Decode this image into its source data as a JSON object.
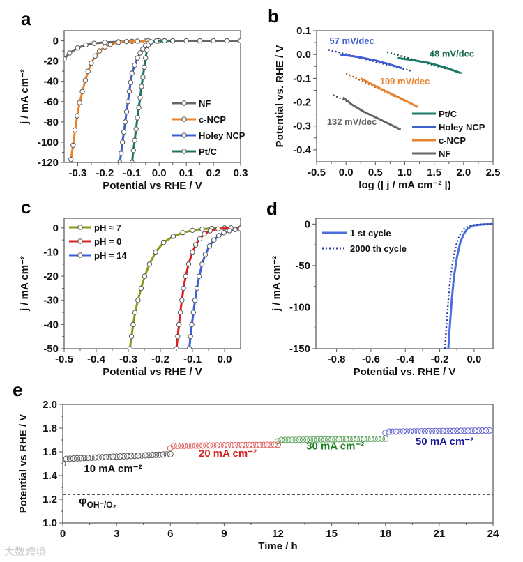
{
  "watermark": "大数跨境",
  "chart_data": [
    {
      "id": "a",
      "panel_label": "a",
      "type": "line",
      "xlim": [
        -0.35,
        0.3
      ],
      "ylim": [
        -120,
        10
      ],
      "xticks": [
        "-0.3",
        "-0.2",
        "-0.1",
        "0.0",
        "0.1",
        "0.2",
        "0.3"
      ],
      "yticks": [
        "0",
        "-20",
        "-40",
        "-60",
        "-80",
        "-100",
        "-120"
      ],
      "xlabel": "Potential vs RHE / V",
      "ylabel": "j / mA cm⁻²",
      "series": [
        {
          "name": "NF",
          "color": "#666666",
          "style": "line-markers",
          "points": [
            [
              -0.35,
              -18
            ],
            [
              -0.33,
              -12
            ],
            [
              -0.3,
              -7
            ],
            [
              -0.27,
              -4
            ],
            [
              -0.24,
              -2.5
            ],
            [
              -0.2,
              -1.5
            ],
            [
              -0.15,
              -1
            ],
            [
              -0.1,
              -0.5
            ],
            [
              -0.05,
              -0.3
            ],
            [
              0,
              -0.2
            ],
            [
              0.05,
              0
            ],
            [
              0.1,
              0
            ],
            [
              0.15,
              0
            ],
            [
              0.2,
              0
            ],
            [
              0.25,
              0
            ],
            [
              0.3,
              0
            ]
          ]
        },
        {
          "name": "c-NCP",
          "color": "#e8832e",
          "style": "line-markers",
          "points": [
            [
              -0.325,
              -117
            ],
            [
              -0.317,
              -103
            ],
            [
              -0.31,
              -88
            ],
            [
              -0.302,
              -74
            ],
            [
              -0.293,
              -61
            ],
            [
              -0.283,
              -50
            ],
            [
              -0.272,
              -39
            ],
            [
              -0.262,
              -30
            ],
            [
              -0.25,
              -22
            ],
            [
              -0.236,
              -15
            ],
            [
              -0.22,
              -10
            ],
            [
              -0.2,
              -6
            ],
            [
              -0.18,
              -3.5
            ],
            [
              -0.15,
              -1.5
            ],
            [
              -0.12,
              -0.8
            ],
            [
              -0.08,
              -0.3
            ],
            [
              -0.04,
              0
            ],
            [
              0,
              0
            ]
          ]
        },
        {
          "name": "Holey NCP",
          "color": "#4060d0",
          "style": "line-markers",
          "points": [
            [
              -0.145,
              -120
            ],
            [
              -0.14,
              -111
            ],
            [
              -0.135,
              -100
            ],
            [
              -0.13,
              -90
            ],
            [
              -0.125,
              -80
            ],
            [
              -0.12,
              -70
            ],
            [
              -0.115,
              -60
            ],
            [
              -0.11,
              -50
            ],
            [
              -0.105,
              -41
            ],
            [
              -0.1,
              -32
            ],
            [
              -0.09,
              -24
            ],
            [
              -0.08,
              -17
            ],
            [
              -0.07,
              -12
            ],
            [
              -0.06,
              -8
            ],
            [
              -0.05,
              -4.5
            ],
            [
              -0.04,
              -2.5
            ],
            [
              -0.03,
              -1.2
            ],
            [
              -0.01,
              -0.3
            ],
            [
              0.02,
              0
            ],
            [
              0.05,
              0
            ]
          ]
        },
        {
          "name": "Pt/C",
          "color": "#1a7a66",
          "style": "line-markers",
          "points": [
            [
              -0.1,
              -120
            ],
            [
              -0.095,
              -108
            ],
            [
              -0.09,
              -98
            ],
            [
              -0.085,
              -87
            ],
            [
              -0.08,
              -76
            ],
            [
              -0.075,
              -66
            ],
            [
              -0.07,
              -56
            ],
            [
              -0.065,
              -45
            ],
            [
              -0.06,
              -36
            ],
            [
              -0.055,
              -26
            ],
            [
              -0.05,
              -17
            ],
            [
              -0.045,
              -9
            ],
            [
              -0.04,
              -4
            ],
            [
              -0.03,
              -1
            ],
            [
              -0.01,
              0
            ],
            [
              0.02,
              0
            ],
            [
              0.05,
              0
            ]
          ]
        }
      ],
      "legend": {
        "placement": "bottom-right",
        "entries": [
          "NF",
          "c-NCP",
          "Holey NCP",
          "Pt/C"
        ]
      },
      "annotations": []
    },
    {
      "id": "b",
      "panel_label": "b",
      "type": "line",
      "xlim": [
        -0.5,
        2.5
      ],
      "ylim": [
        -0.45,
        0.1
      ],
      "xticks": [
        "-0.5",
        "0.0",
        "0.5",
        "1.0",
        "1.5",
        "2.0",
        "2.5"
      ],
      "yticks": [
        "0.1",
        "0.0",
        "-0.1",
        "-0.2",
        "-0.3",
        "-0.4"
      ],
      "xlabel": "log (| j / mA cm⁻² |)",
      "ylabel": "Potential vs. RHE / V",
      "series": [
        {
          "name": "Pt/C fit",
          "color": "#1a4a40",
          "style": "dotted",
          "points": [
            [
              0.7,
              0.01
            ],
            [
              2.0,
              -0.08
            ]
          ]
        },
        {
          "name": "Pt/C",
          "color": "#1a7a66",
          "style": "line",
          "points": [
            [
              0.88,
              -0.015
            ],
            [
              1.1,
              -0.022
            ],
            [
              1.4,
              -0.035
            ],
            [
              1.7,
              -0.055
            ],
            [
              1.95,
              -0.078
            ]
          ]
        },
        {
          "name": "Holey NCP fit",
          "color": "#223a90",
          "style": "dotted",
          "points": [
            [
              -0.3,
              0.02
            ],
            [
              1.1,
              -0.068
            ]
          ]
        },
        {
          "name": "Holey NCP",
          "color": "#4060d0",
          "style": "line",
          "points": [
            [
              -0.1,
              0.0
            ],
            [
              0.2,
              -0.01
            ],
            [
              0.5,
              -0.025
            ],
            [
              0.75,
              -0.042
            ],
            [
              0.95,
              -0.057
            ]
          ]
        },
        {
          "name": "c-NCP fit",
          "color": "#b05a10",
          "style": "dotted",
          "points": [
            [
              0.0,
              -0.08
            ],
            [
              1.22,
              -0.22
            ]
          ]
        },
        {
          "name": "c-NCP",
          "color": "#e8832e",
          "style": "line",
          "points": [
            [
              0.25,
              -0.1
            ],
            [
              0.6,
              -0.145
            ],
            [
              0.9,
              -0.18
            ],
            [
              1.22,
              -0.22
            ]
          ]
        },
        {
          "name": "NF fit",
          "color": "#444444",
          "style": "dotted",
          "points": [
            [
              -0.22,
              -0.17
            ],
            [
              0.1,
              -0.205
            ]
          ]
        },
        {
          "name": "NF",
          "color": "#666666",
          "style": "line",
          "points": [
            [
              -0.05,
              -0.18
            ],
            [
              0.1,
              -0.21
            ],
            [
              0.3,
              -0.24
            ],
            [
              0.6,
              -0.275
            ],
            [
              0.93,
              -0.315
            ]
          ]
        }
      ],
      "legend": {
        "placement": "bottom-right",
        "entries": [
          "Pt/C",
          "Holey NCP",
          "c-NCP",
          "NF"
        ]
      },
      "annotations": [
        {
          "text": "57 mV/dec",
          "x": 0.1,
          "y": 0.045,
          "color": "#4060d0"
        },
        {
          "text": "48 mV/dec",
          "x": 1.8,
          "y": -0.01,
          "color": "#1a6a56"
        },
        {
          "text": "109 mV/dec",
          "x": 1.0,
          "y": -0.125,
          "color": "#e8832e"
        },
        {
          "text": "132 mV/dec",
          "x": 0.1,
          "y": -0.295,
          "color": "#666666"
        }
      ]
    },
    {
      "id": "c",
      "panel_label": "c",
      "type": "line",
      "xlim": [
        -0.5,
        0.05
      ],
      "ylim": [
        -50,
        4
      ],
      "xticks": [
        "-0.5",
        "-0.4",
        "-0.3",
        "-0.2",
        "-0.1",
        "0.0"
      ],
      "yticks": [
        "0",
        "-10",
        "-20",
        "-30",
        "-40",
        "-50"
      ],
      "xlabel": "Potential vs RHE / V",
      "ylabel": "j / mA cm⁻²",
      "series": [
        {
          "name": "pH ≈ 7",
          "color": "#8a9a18",
          "style": "line-markers",
          "points": [
            [
              -0.295,
              -50
            ],
            [
              -0.29,
              -45
            ],
            [
              -0.285,
              -40
            ],
            [
              -0.279,
              -35
            ],
            [
              -0.27,
              -30
            ],
            [
              -0.26,
              -25
            ],
            [
              -0.249,
              -20
            ],
            [
              -0.234,
              -15
            ],
            [
              -0.215,
              -10
            ],
            [
              -0.19,
              -6
            ],
            [
              -0.16,
              -3.5
            ],
            [
              -0.13,
              -2
            ],
            [
              -0.1,
              -1
            ],
            [
              -0.07,
              -0.5
            ],
            [
              -0.04,
              -0.2
            ],
            [
              0,
              0
            ]
          ]
        },
        {
          "name": "pH = 0",
          "color": "#e02020",
          "style": "line-markers",
          "points": [
            [
              -0.15,
              -50
            ],
            [
              -0.146,
              -45
            ],
            [
              -0.142,
              -40
            ],
            [
              -0.138,
              -35
            ],
            [
              -0.133,
              -30
            ],
            [
              -0.128,
              -25
            ],
            [
              -0.121,
              -20
            ],
            [
              -0.112,
              -15
            ],
            [
              -0.1,
              -10
            ],
            [
              -0.09,
              -7
            ],
            [
              -0.077,
              -4.5
            ],
            [
              -0.063,
              -2.5
            ],
            [
              -0.045,
              -1.2
            ],
            [
              -0.02,
              -0.4
            ],
            [
              0.02,
              0
            ],
            [
              0.05,
              0
            ]
          ]
        },
        {
          "name": "pH = 14",
          "color": "#3b5ee0",
          "style": "line-markers",
          "points": [
            [
              -0.11,
              -50
            ],
            [
              -0.106,
              -45
            ],
            [
              -0.102,
              -40
            ],
            [
              -0.097,
              -35
            ],
            [
              -0.092,
              -30
            ],
            [
              -0.086,
              -25
            ],
            [
              -0.079,
              -20
            ],
            [
              -0.07,
              -15
            ],
            [
              -0.06,
              -11
            ],
            [
              -0.047,
              -7.5
            ],
            [
              -0.033,
              -5
            ],
            [
              -0.018,
              -3.2
            ],
            [
              -0.002,
              -2
            ],
            [
              0.015,
              -1.2
            ],
            [
              0.033,
              -0.7
            ],
            [
              0.05,
              -0.4
            ]
          ]
        }
      ],
      "legend": {
        "placement": "top-left",
        "entries": [
          "pH ≈ 7",
          "pH = 0",
          "pH = 14"
        ]
      },
      "annotations": []
    },
    {
      "id": "d",
      "panel_label": "d",
      "type": "line",
      "xlim": [
        -0.92,
        0.11
      ],
      "ylim": [
        -150,
        7
      ],
      "xticks": [
        "-0.8",
        "-0.6",
        "-0.4",
        "-0.2",
        "0.0"
      ],
      "yticks": [
        "0",
        "-50",
        "-100",
        "-150"
      ],
      "xlabel": "Potential vs. RHE / V",
      "ylabel": "j / mA cm⁻²",
      "series": [
        {
          "name": "1 st cycle",
          "color": "#4a6ee0",
          "style": "line",
          "points": [
            [
              -0.15,
              -150
            ],
            [
              -0.14,
              -120
            ],
            [
              -0.13,
              -92
            ],
            [
              -0.118,
              -65
            ],
            [
              -0.1,
              -40
            ],
            [
              -0.08,
              -22
            ],
            [
              -0.06,
              -12
            ],
            [
              -0.04,
              -6
            ],
            [
              -0.02,
              -3
            ],
            [
              0,
              -1.5
            ],
            [
              0.05,
              -0.5
            ],
            [
              0.11,
              0
            ]
          ]
        },
        {
          "name": "2000 th cycle",
          "color": "#2a3ea0",
          "style": "dotted",
          "points": [
            [
              -0.17,
              -150
            ],
            [
              -0.16,
              -120
            ],
            [
              -0.15,
              -92
            ],
            [
              -0.138,
              -65
            ],
            [
              -0.12,
              -40
            ],
            [
              -0.1,
              -22
            ],
            [
              -0.08,
              -12
            ],
            [
              -0.06,
              -6
            ],
            [
              -0.03,
              -2
            ],
            [
              0,
              -1
            ],
            [
              0.05,
              -0.3
            ],
            [
              0.11,
              0
            ]
          ]
        }
      ],
      "legend": {
        "placement": "top-left",
        "entries": [
          "1 st cycle",
          "2000 th cycle"
        ]
      },
      "annotations": []
    },
    {
      "id": "e",
      "panel_label": "e",
      "type": "scatter",
      "xlim": [
        0,
        24
      ],
      "ylim": [
        1.0,
        2.0
      ],
      "xticks": [
        "0",
        "3",
        "6",
        "9",
        "12",
        "15",
        "18",
        "21",
        "24"
      ],
      "yticks": [
        "1.0",
        "1.2",
        "1.4",
        "1.6",
        "1.8",
        "2.0"
      ],
      "xlabel": "Time / h",
      "ylabel": "Potential vs RHE / V",
      "segments": [
        {
          "label": "10 mA cm⁻²",
          "color": "#555555",
          "label_color": "#111111",
          "t_start": 0,
          "t_end": 6,
          "v_initial": 1.5,
          "v_start": 1.54,
          "v_end": 1.58,
          "label_x": 2.8,
          "label_y": 1.43
        },
        {
          "label": "20 mA cm⁻²",
          "color": "#e06060",
          "label_color": "#d42020",
          "t_start": 6,
          "t_end": 12,
          "v_initial": 1.63,
          "v_start": 1.65,
          "v_end": 1.66,
          "label_x": 9.2,
          "label_y": 1.56
        },
        {
          "label": "30 mA cm⁻²",
          "color": "#5aa05a",
          "label_color": "#208020",
          "t_start": 12,
          "t_end": 18,
          "v_initial": 1.69,
          "v_start": 1.7,
          "v_end": 1.71,
          "label_x": 15.2,
          "label_y": 1.62
        },
        {
          "label": "50 mA cm⁻²",
          "color": "#6060d0",
          "label_color": "#1a1aa0",
          "t_start": 18,
          "t_end": 23.8,
          "v_initial": 1.76,
          "v_start": 1.77,
          "v_end": 1.78,
          "label_x": 21.3,
          "label_y": 1.66
        }
      ],
      "reference_line": {
        "y": 1.24,
        "label": "φ",
        "label_sub": "OH⁻/O₂",
        "label_x": 0.9,
        "label_y": 1.16
      }
    }
  ]
}
